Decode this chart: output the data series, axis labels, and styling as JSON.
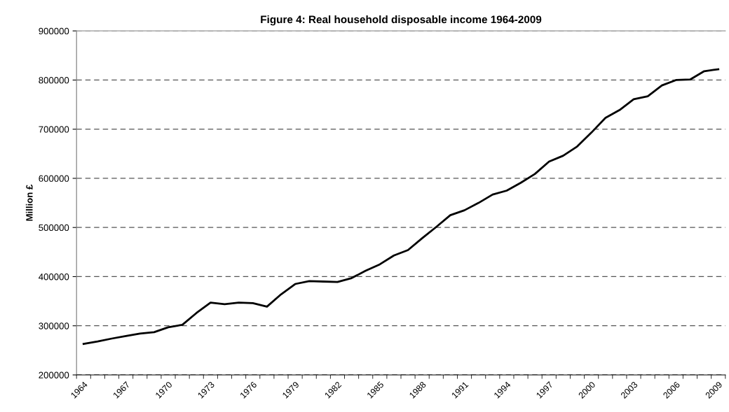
{
  "chart_data": {
    "type": "line",
    "title": "Figure 4: Real household disposable income 1964-2009",
    "ylabel": "Million £",
    "categories": [
      "1964",
      null,
      null,
      "1967",
      null,
      null,
      "1970",
      null,
      null,
      "1973",
      null,
      null,
      "1976",
      null,
      null,
      "1979",
      null,
      null,
      "1982",
      null,
      null,
      "1985",
      null,
      null,
      "1988",
      null,
      null,
      "1991",
      null,
      null,
      "1994",
      null,
      null,
      "1997",
      null,
      null,
      "2000",
      null,
      null,
      "2003",
      null,
      null,
      "2006",
      null,
      null,
      "2009"
    ],
    "series": [
      {
        "color": "#000000",
        "values": [
          263000,
          268000,
          274000,
          279000,
          284000,
          287000,
          297000,
          302000,
          326000,
          347000,
          344000,
          347000,
          346000,
          339000,
          364000,
          385000,
          391000,
          390000,
          389000,
          397000,
          412000,
          425000,
          443000,
          454000,
          478000,
          501000,
          525000,
          535000,
          550000,
          567000,
          575000,
          591000,
          609000,
          634000,
          646000,
          665000,
          693000,
          723000,
          739000,
          761000,
          767000,
          789000,
          800000,
          801000,
          818000,
          822000
        ]
      }
    ],
    "ylim": [
      200000,
      900000
    ],
    "yticks": [
      200000,
      300000,
      400000,
      500000,
      600000,
      700000,
      800000,
      900000
    ],
    "grid": "y",
    "legend": false,
    "marker": "none",
    "line_style": "solid"
  }
}
